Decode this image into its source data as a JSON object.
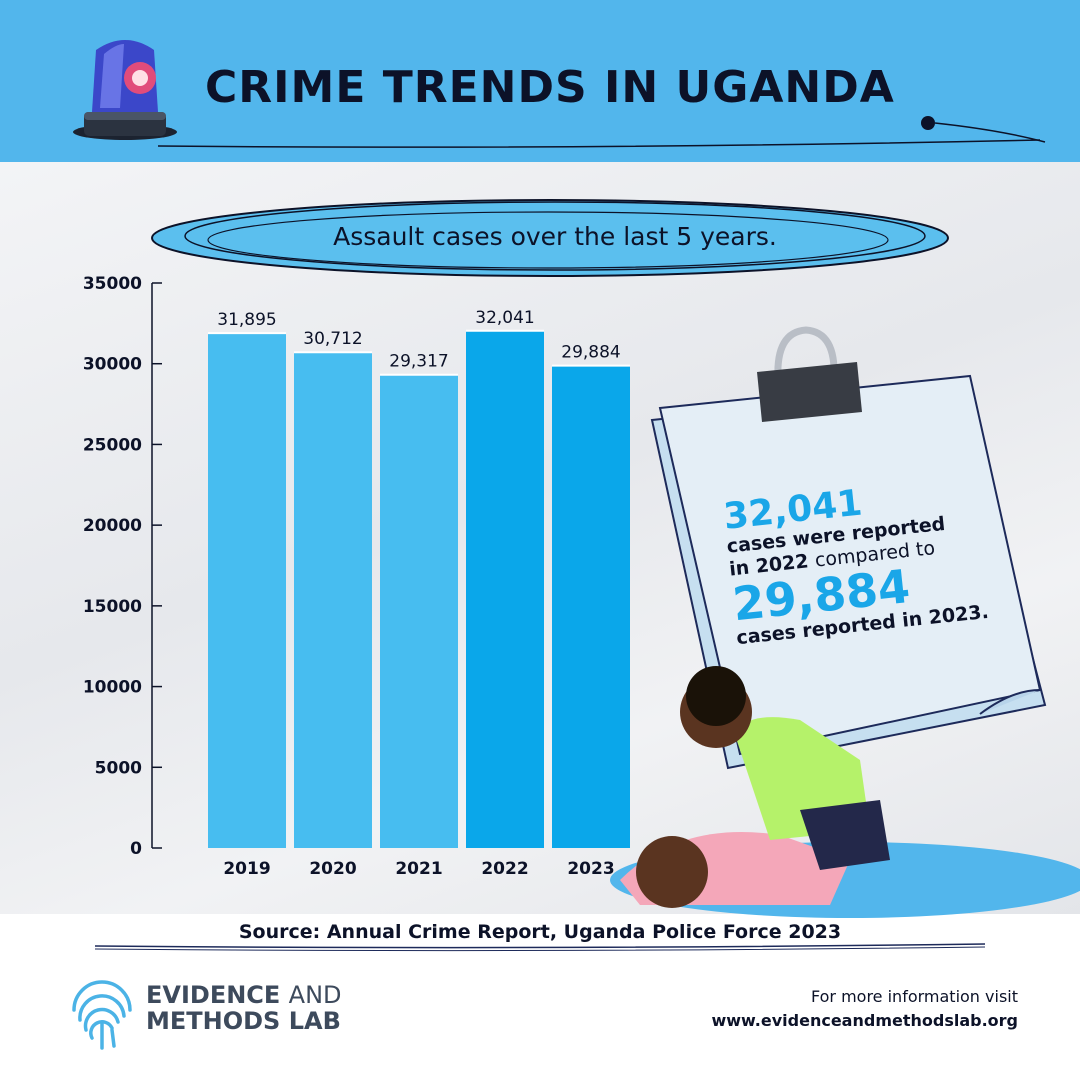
{
  "header": {
    "title": "CRIME TRENDS IN UGANDA",
    "accent_color": "#52b6ec",
    "icon": "police-siren-icon"
  },
  "chart_data": {
    "type": "bar",
    "title": "Assault cases over the last 5 years.",
    "categories": [
      "2019",
      "2020",
      "2021",
      "2022",
      "2023"
    ],
    "values": [
      31895,
      30712,
      29317,
      32041,
      29884
    ],
    "value_labels": [
      "31,895",
      "30,712",
      "29,317",
      "32,041",
      "29,884"
    ],
    "ylim": [
      0,
      35000
    ],
    "yticks": [
      0,
      5000,
      10000,
      15000,
      20000,
      25000,
      30000,
      35000
    ],
    "xlabel": "",
    "ylabel": "",
    "grid": false,
    "legend": "none",
    "colors": [
      "#47bdf0",
      "#47bdf0",
      "#47bdf0",
      "#0aa7ea",
      "#0aa7ea"
    ]
  },
  "note": {
    "value_2022": "32,041",
    "line1": "cases were reported",
    "line2_bold": "in 2022",
    "line2_rest": "compared to",
    "value_2023": "29,884",
    "line3": "cases reported in 2023."
  },
  "source": "Source: Annual Crime Report, Uganda Police Force 2023",
  "footer": {
    "logo_line1_bold": "EVIDENCE",
    "logo_line1_light": "AND",
    "logo_line2": "METHODS LAB",
    "info_label": "For more information visit",
    "info_url": "www.evidenceandmethodslab.org",
    "logo_icon": "fingerprint-icon"
  }
}
